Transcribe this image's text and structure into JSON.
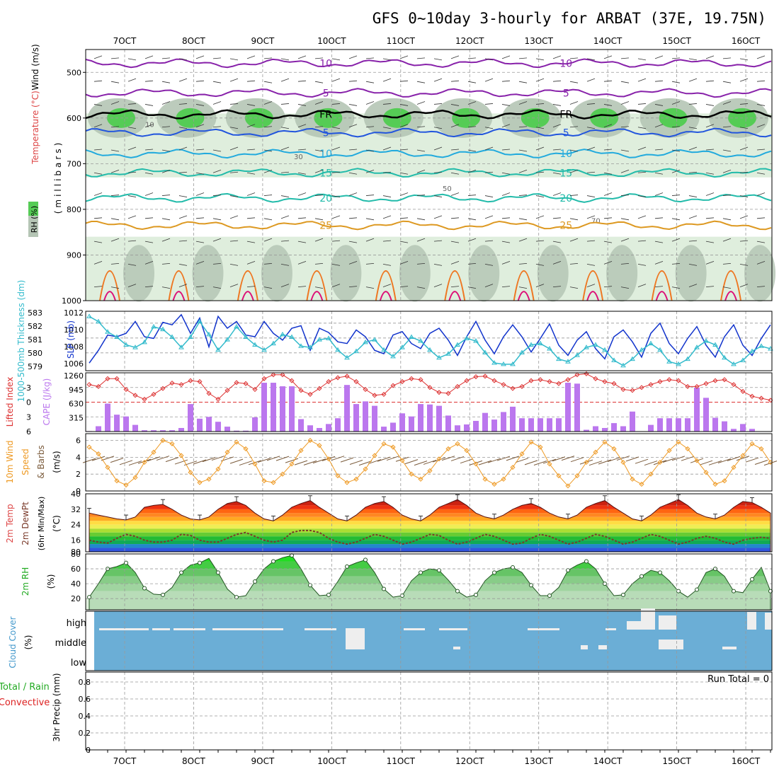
{
  "title": "GFS 0~10day 3-hourly for ARBAT (37E, 19.75N)",
  "dates": [
    "7OCT",
    "8OCT",
    "9OCT",
    "10OCT",
    "11OCT",
    "12OCT",
    "13OCT",
    "14OCT",
    "15OCT",
    "16OCT"
  ],
  "colors": {
    "rh_light": "#dfeedd",
    "rh_mid": "#b5c5b5",
    "rh_dark": "#98a898",
    "rh_green": "#55cc55",
    "temp_blue": "#2255dd",
    "temp_cyan": "#22aadd",
    "temp_teal": "#22bbaa",
    "temp_orange": "#dd9922",
    "temp_purple": "#8822aa",
    "freezing": "#000000",
    "slp": "#1133cc",
    "thickness": "#33bbcc",
    "lifted": "#dd3333",
    "cape": "#bb77ee",
    "wind": "#ee9922",
    "cloud_bg": "#6baed6"
  },
  "chart_data": [
    {
      "type": "heatmap",
      "name": "upper",
      "ylabel_wind": "Wind (m/s)",
      "ylabel_temp": "Temperature (°C)",
      "ylabel_rh": "RH (%)",
      "ylabel_mb": "(millibars)",
      "y_ticks": [
        "500",
        "600",
        "700",
        "800",
        "900",
        "1000"
      ],
      "ylim": [
        1000,
        450
      ],
      "contours": [
        {
          "label": "10",
          "level_mb": 480,
          "color": "#8822aa"
        },
        {
          "label": "5",
          "level_mb": 545,
          "color": "#8822aa"
        },
        {
          "label": "FR",
          "level_mb": 592,
          "color": "#000000"
        },
        {
          "label": "5",
          "level_mb": 632,
          "color": "#2255dd"
        },
        {
          "label": "10",
          "level_mb": 678,
          "color": "#22aadd"
        },
        {
          "label": "15",
          "level_mb": 720,
          "color": "#22bbaa"
        },
        {
          "label": "20",
          "level_mb": 775,
          "color": "#22bbaa"
        },
        {
          "label": "25",
          "level_mb": 835,
          "color": "#dd9922"
        }
      ],
      "rh_labels": [
        "10",
        "30",
        "50",
        "70"
      ]
    },
    {
      "type": "line",
      "name": "slp-thickness",
      "ylabel_left": "1000-500mb Thickness (dm)",
      "ylabel_right": "SLP (mb)",
      "thickness_ticks": [
        "579",
        "580",
        "581",
        "582",
        "583"
      ],
      "slp_ticks": [
        "1006",
        "1008",
        "1010",
        "1012"
      ],
      "series": [
        {
          "name": "SLP (mb)",
          "ylim": [
            1005.6,
            1012.6
          ],
          "values": [
            1006.5,
            1008,
            1009.8,
            1009.6,
            1010,
            1011.4,
            1009.6,
            1009.4,
            1011.3,
            1011,
            1012.2,
            1010,
            1011.8,
            1008.4,
            1012,
            1010.6,
            1011.4,
            1009.8,
            1009.6,
            1011.4,
            1010,
            1009.2,
            1010.6,
            1010.9,
            1008,
            1010.6,
            1010.1,
            1009,
            1008.8,
            1010.4,
            1009.6,
            1008,
            1007.6,
            1009.8,
            1010.2,
            1008.8,
            1008.2,
            1010,
            1010.6,
            1009.2,
            1007.4,
            1009.6,
            1011.4,
            1009.2,
            1007.6,
            1009.6,
            1011,
            1009.6,
            1007.8,
            1009.4,
            1011.1,
            1008.6,
            1007.4,
            1009.2,
            1010.2,
            1008.2,
            1007,
            1009.6,
            1010.4,
            1009,
            1007.2,
            1010,
            1011.2,
            1008.8,
            1007.6,
            1009.4,
            1010.8,
            1008.6,
            1007.2,
            1009.6,
            1011,
            1008.6,
            1007.4,
            1009.4,
            1011
          ]
        },
        {
          "name": "Thickness (dm)",
          "ylim": [
            578.8,
            583.4
          ],
          "values": [
            583,
            582.6,
            581.8,
            581.4,
            580.8,
            580.6,
            581,
            582.2,
            582,
            581.4,
            580.6,
            581.4,
            582.6,
            581.6,
            580.4,
            581.2,
            582.2,
            581.4,
            580.8,
            580.4,
            580.9,
            581.6,
            581.4,
            580.7,
            580.6,
            581.2,
            581.3,
            580.4,
            579.8,
            580.3,
            581,
            581.2,
            580.4,
            579.9,
            580.6,
            581.4,
            581.1,
            580.4,
            579.8,
            580.1,
            580.8,
            581.3,
            581.1,
            580.2,
            579.4,
            579.3,
            579.3,
            580.2,
            580.8,
            580.9,
            580.5,
            579.7,
            579.5,
            580,
            580.6,
            580.8,
            580.4,
            579.6,
            579.2,
            579.7,
            580.4,
            580.9,
            580.4,
            579.5,
            579.3,
            579.7,
            580.6,
            581.1,
            580.8,
            579.8,
            579.3,
            579.6,
            580.3,
            580.7,
            580.5
          ]
        }
      ]
    },
    {
      "type": "bar",
      "name": "cape-lifted",
      "ylabel_left": "Lifted Index",
      "ylabel_right": "CAPE (J/kg)",
      "li_ticks": [
        "-3",
        "0",
        "3",
        "6"
      ],
      "cape_ticks": [
        "1260",
        "945",
        "630",
        "315"
      ],
      "cape_ylim": [
        0,
        1260
      ],
      "li_ylim": [
        6,
        -6
      ],
      "cape": [
        10,
        120,
        630,
        380,
        340,
        150,
        30,
        30,
        30,
        30,
        80,
        620,
        290,
        330,
        220,
        110,
        20,
        20,
        320,
        1100,
        1100,
        1020,
        1020,
        280,
        140,
        80,
        170,
        300,
        1050,
        620,
        680,
        580,
        110,
        200,
        410,
        340,
        620,
        610,
        580,
        360,
        140,
        160,
        240,
        420,
        270,
        440,
        560,
        300,
        300,
        300,
        300,
        300,
        1100,
        1080,
        40,
        120,
        80,
        190,
        120,
        450,
        0,
        150,
        300,
        300,
        300,
        300,
        990,
        760,
        310,
        230,
        60,
        170,
        60,
        0,
        0
      ],
      "lifted": [
        -3.6,
        -3.2,
        -4.8,
        -4.8,
        -2.6,
        -1.4,
        -0.6,
        -1.6,
        -2.8,
        -3.9,
        -3.6,
        -4.4,
        -4.2,
        -1.8,
        -0.6,
        -2.4,
        -4,
        -3.8,
        -2.6,
        -4.8,
        -5.6,
        -5.6,
        -4.4,
        -2.4,
        -1.6,
        -2.8,
        -4.2,
        -5,
        -5.3,
        -4.2,
        -2.6,
        -1.4,
        -1.6,
        -3.4,
        -4.2,
        -4.8,
        -4.6,
        -3,
        -2,
        -1.8,
        -3.2,
        -4.4,
        -5.2,
        -5.3,
        -4.4,
        -3.6,
        -2.8,
        -3.2,
        -4.4,
        -4.6,
        -4.2,
        -3.8,
        -4.6,
        -5.6,
        -5.8,
        -4.8,
        -4.2,
        -3.8,
        -2.6,
        -2.4,
        -3,
        -3.6,
        -4.2,
        -4.6,
        -4.4,
        -3.2,
        -3.2,
        -3.8,
        -4.4,
        -4.6,
        -3.6,
        -2.2,
        -1.2,
        -0.8,
        -0.4
      ]
    },
    {
      "type": "line",
      "name": "wind10m",
      "ylabel": "10m Wind Speed & Barbs (m/s)",
      "y_ticks": [
        "0",
        "2",
        "4",
        "6"
      ],
      "ylim": [
        0,
        6.8
      ],
      "values": [
        5.2,
        4.4,
        2.8,
        1.2,
        0.7,
        1.6,
        3.4,
        4.6,
        6,
        5.6,
        4.2,
        2.2,
        1,
        1.4,
        2.6,
        4.6,
        5.8,
        5,
        3.2,
        1.2,
        1,
        2,
        3.2,
        4.8,
        6,
        5.4,
        3.8,
        1.8,
        1,
        1.4,
        2.6,
        4.2,
        5.6,
        5.2,
        3.6,
        2,
        1.4,
        2.4,
        3.8,
        5,
        5.6,
        4.8,
        3.2,
        1.4,
        0.8,
        1.4,
        2.8,
        4.4,
        5.8,
        5.2,
        3.2,
        1.8,
        0.6,
        1.8,
        3.4,
        4.6,
        5.8,
        5,
        3.4,
        1.4,
        0.8,
        2,
        3.4,
        4.8,
        5.8,
        5,
        3.6,
        2.2,
        0.8,
        1.2,
        2.8,
        4.2,
        5.6,
        5,
        3.4
      ]
    },
    {
      "type": "area",
      "name": "temp2m",
      "ylabel": "2m Temp 2m DewPt (6hr Min/Max) (°C)",
      "y_ticks": [
        "16",
        "24",
        "32",
        "40"
      ],
      "bottom_label": "80",
      "ylim": [
        10,
        40
      ],
      "temp": [
        30,
        29,
        28,
        27,
        26.5,
        28,
        33,
        34,
        34.5,
        32,
        29,
        27,
        26.5,
        28,
        32,
        35,
        36,
        34,
        30,
        27,
        26,
        29,
        33,
        35,
        36.5,
        33,
        30,
        27,
        26,
        29,
        33,
        35,
        36,
        33,
        29,
        27,
        26,
        29,
        33,
        35,
        37,
        34,
        30,
        28,
        27,
        29,
        32,
        34,
        35,
        33,
        30,
        28,
        27,
        29,
        33,
        35,
        36.5,
        33,
        30,
        27,
        26,
        29,
        33,
        35,
        37,
        34,
        30,
        28,
        27,
        29,
        33,
        36,
        35.5,
        33,
        30
      ],
      "dewpt": [
        16,
        15,
        14.5,
        17,
        19,
        18,
        16,
        15,
        15,
        16,
        19,
        18.5,
        16,
        15,
        15,
        17,
        19,
        20,
        18,
        16,
        15,
        16,
        20,
        21,
        21,
        20,
        17,
        15,
        14,
        15,
        17,
        19,
        18,
        16,
        14,
        15,
        17,
        19,
        18.5,
        16,
        14,
        15,
        17,
        19,
        18,
        16,
        14,
        14.5,
        17,
        19,
        18,
        16,
        14,
        15,
        17,
        19,
        18,
        16,
        14,
        15,
        17,
        19,
        18,
        16,
        14,
        15,
        17,
        18,
        17,
        15,
        14,
        16,
        17,
        17.5,
        17
      ]
    },
    {
      "type": "area",
      "name": "rh2m",
      "ylabel": "2m RH (%)",
      "y_ticks": [
        "20",
        "40",
        "60",
        "80"
      ],
      "ylim": [
        5,
        80
      ],
      "values": [
        22,
        40,
        60,
        63,
        68,
        55,
        34,
        26,
        25,
        35,
        55,
        65,
        68,
        74,
        55,
        33,
        22,
        24,
        43,
        60,
        70,
        75,
        78,
        60,
        38,
        24,
        25,
        43,
        63,
        68,
        72,
        55,
        33,
        22,
        24,
        44,
        55,
        60,
        58,
        45,
        30,
        22,
        25,
        44,
        55,
        60,
        62,
        55,
        38,
        24,
        24,
        35,
        58,
        65,
        70,
        60,
        40,
        24,
        25,
        40,
        50,
        58,
        55,
        44,
        30,
        22,
        32,
        55,
        60,
        50,
        30,
        28,
        46,
        62,
        30
      ]
    },
    {
      "type": "table",
      "name": "cloud",
      "ylabel": "Cloud Cover (%)",
      "levels": [
        "high",
        "middle",
        "low"
      ],
      "cloud_high": [
        0,
        0,
        0,
        0,
        0,
        0,
        0,
        0,
        0,
        0,
        0,
        0,
        0,
        0,
        0,
        0,
        0,
        0,
        0,
        0,
        0,
        0,
        0,
        0,
        0,
        0,
        0,
        0,
        0,
        0,
        0,
        0,
        0,
        0,
        0,
        0,
        0,
        0,
        0,
        0,
        0,
        0,
        0,
        0,
        0,
        0,
        0,
        0,
        0,
        0,
        0,
        0,
        0,
        0,
        0,
        0,
        0,
        0,
        0,
        0,
        0,
        0,
        0,
        0,
        0,
        0,
        0,
        0,
        0,
        0,
        0,
        0,
        0,
        0,
        0
      ],
      "cloud_mid": [
        0,
        0,
        0,
        0,
        0,
        0,
        0,
        0,
        0,
        0,
        0,
        0,
        0,
        0,
        0,
        0,
        0,
        0,
        0,
        0,
        0,
        0,
        0,
        0,
        0,
        0,
        0,
        0,
        0,
        0,
        0,
        0,
        0,
        0,
        0,
        0,
        0,
        0,
        0,
        0,
        0,
        0,
        0,
        0,
        0,
        0,
        0,
        0,
        0,
        0,
        0,
        0,
        0,
        0,
        0,
        0,
        0,
        0,
        0,
        0,
        0,
        0,
        0,
        0,
        0,
        0,
        0,
        0,
        0,
        0,
        0,
        0,
        0,
        0,
        0
      ]
    },
    {
      "type": "bar",
      "name": "precip",
      "ylabel_total": "Total / Rain",
      "ylabel_conv": "Convective",
      "ylabel": "3hr Precip (mm)",
      "y_ticks": [
        "0",
        "0.2",
        "0.4",
        "0.6",
        "0.8"
      ],
      "ylim": [
        0,
        1
      ],
      "run_total": "Run Total = 0",
      "values": [
        0,
        0,
        0,
        0,
        0,
        0,
        0,
        0,
        0,
        0
      ]
    }
  ]
}
